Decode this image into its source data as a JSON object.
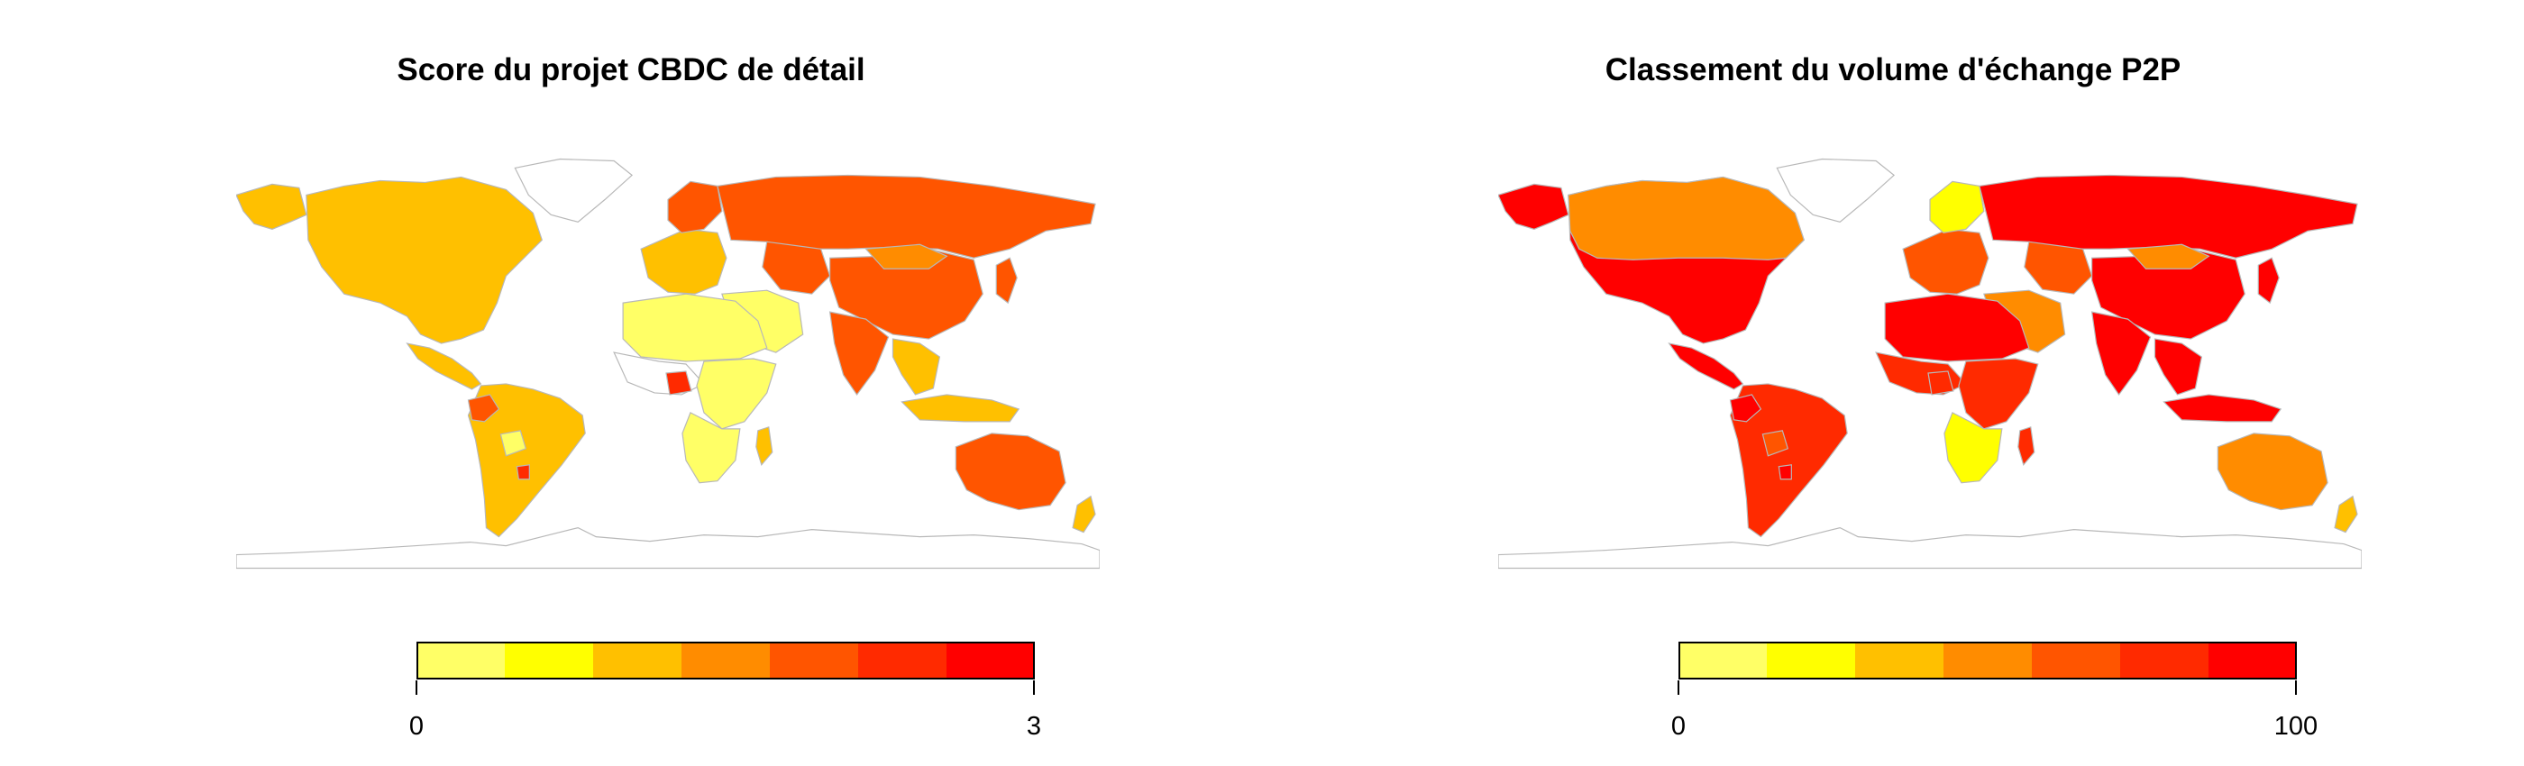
{
  "palette": [
    "#FFFF66",
    "#FFFF00",
    "#FFC000",
    "#FF8C00",
    "#FF5500",
    "#FF2A00",
    "#FF0000"
  ],
  "maps": [
    {
      "title": "Score du projet CBDC de détail",
      "legend": {
        "min_label": "0",
        "max_label": "3",
        "range": [
          0,
          3
        ],
        "bins": 7
      },
      "regions": {
        "north_america": "#FFC000",
        "greenland": "#FFFFFF",
        "alaska": "#FFC000",
        "central_america": "#FFC000",
        "south_america": "#FFC000",
        "colombia_ecuador": "#FF5500",
        "bolivia": "#FFFF66",
        "uruguay": "#FF2A00",
        "europe": "#FFC000",
        "scandinavia": "#FF5500",
        "russia": "#FF5500",
        "central_asia": "#FF5500",
        "china": "#FF5500",
        "mongolia": "#FF8C00",
        "middle_east": "#FFFF66",
        "india": "#FF5500",
        "south_east_asia": "#FFC000",
        "japan": "#FF5500",
        "north_africa": "#FFFF66",
        "west_africa": "#FFFFFF",
        "nigeria": "#FF2A00",
        "east_africa": "#FFFF66",
        "southern_africa": "#FFFF66",
        "madagascar": "#FFC000",
        "indonesia": "#FFC000",
        "australia": "#FF5500",
        "new_zealand": "#FFC000"
      }
    },
    {
      "title": "Classement du volume d'échange P2P",
      "legend": {
        "min_label": "0",
        "max_label": "100",
        "range": [
          0,
          100
        ],
        "bins": 7
      },
      "regions": {
        "north_america": "#FF0000",
        "canada": "#FF8C00",
        "greenland": "#FFFFFF",
        "alaska": "#FF0000",
        "central_america": "#FF0000",
        "south_america": "#FF2A00",
        "colombia_ecuador": "#FF0000",
        "bolivia": "#FF5500",
        "uruguay": "#FF0000",
        "europe": "#FF5500",
        "scandinavia": "#FFFF00",
        "russia": "#FF0000",
        "central_asia": "#FF5500",
        "china": "#FF0000",
        "mongolia": "#FF8C00",
        "middle_east": "#FF8C00",
        "india": "#FF0000",
        "south_east_asia": "#FF0000",
        "japan": "#FF0000",
        "north_africa": "#FF0000",
        "west_africa": "#FF2A00",
        "nigeria": "#FF2A00",
        "east_africa": "#FF2A00",
        "southern_africa": "#FFFF00",
        "madagascar": "#FF2A00",
        "indonesia": "#FF0000",
        "australia": "#FF8C00",
        "new_zealand": "#FFC000"
      }
    }
  ]
}
